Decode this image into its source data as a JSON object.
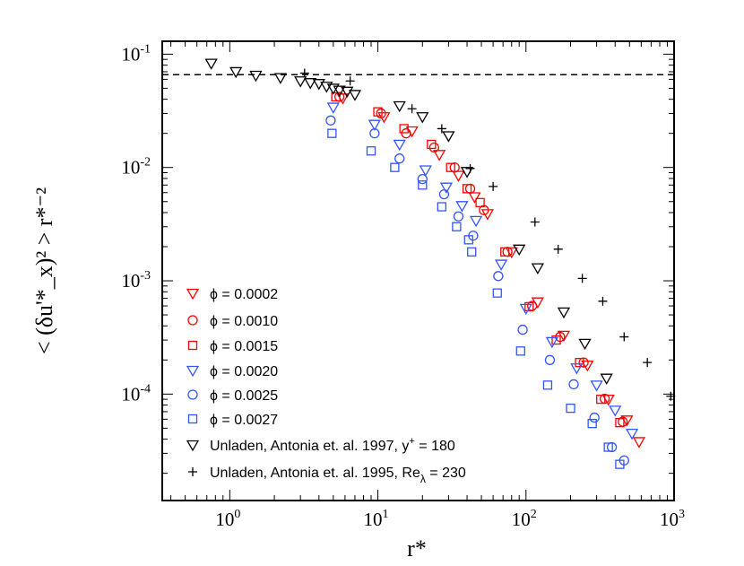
{
  "chart_data": {
    "type": "scatter",
    "xscale": "log",
    "yscale": "log",
    "xlim": [
      0.35,
      1000
    ],
    "ylim": [
      1.15e-05,
      0.13
    ],
    "xlabel": "r*",
    "ylabel": "< (δu'*_x)² > r*⁻²",
    "x_ticks": [
      {
        "base": "10",
        "exp": "0",
        "value": 1
      },
      {
        "base": "10",
        "exp": "1",
        "value": 10
      },
      {
        "base": "10",
        "exp": "2",
        "value": 100
      },
      {
        "base": "10",
        "exp": "3",
        "value": 1000
      }
    ],
    "y_ticks": [
      {
        "base": "10",
        "exp": "-4",
        "value": 0.0001
      },
      {
        "base": "10",
        "exp": "-3",
        "value": 0.001
      },
      {
        "base": "10",
        "exp": "-2",
        "value": 0.01
      },
      {
        "base": "10",
        "exp": "-1",
        "value": 0.1
      }
    ],
    "reference_line": {
      "style": "dashed",
      "y": 0.066
    },
    "legend_position": "lower-left",
    "series": [
      {
        "name": "ϕ = 0.0002",
        "color": "#ff0000",
        "marker": "triangle-down",
        "x": [
          5.8,
          11,
          17,
          26,
          35,
          45,
          55,
          80,
          120,
          180,
          260,
          360,
          480,
          580
        ],
        "y": [
          0.041,
          0.028,
          0.021,
          0.013,
          0.0085,
          0.0055,
          0.0039,
          0.0018,
          0.00065,
          0.00033,
          0.00018,
          9e-05,
          5.9e-05,
          3.8e-05
        ]
      },
      {
        "name": "ϕ = 0.0010",
        "color": "#ff0000",
        "marker": "circle",
        "x": [
          5.5,
          10.5,
          15.5,
          24,
          33,
          42,
          52,
          75,
          110,
          170,
          245,
          340,
          450
        ],
        "y": [
          0.042,
          0.03,
          0.02,
          0.015,
          0.01,
          0.0065,
          0.0042,
          0.0018,
          0.0006,
          0.00032,
          0.00019,
          9.1e-05,
          5.7e-05
        ]
      },
      {
        "name": "ϕ = 0.0015",
        "color": "#ff0000",
        "marker": "square",
        "x": [
          5.2,
          10,
          15,
          23,
          31,
          40,
          49,
          72,
          105,
          160,
          230,
          320,
          430
        ],
        "y": [
          0.042,
          0.031,
          0.022,
          0.016,
          0.01,
          0.0065,
          0.0049,
          0.0018,
          0.00059,
          0.0003,
          0.00019,
          9e-05,
          5.6e-05
        ]
      },
      {
        "name": "ϕ = 0.0020",
        "color": "#3355ff",
        "marker": "triangle-down",
        "x": [
          5,
          9.5,
          14,
          21,
          29,
          37,
          46,
          68,
          100,
          150,
          220,
          300,
          400,
          520
        ],
        "y": [
          0.034,
          0.024,
          0.016,
          0.0095,
          0.0067,
          0.0046,
          0.0034,
          0.0014,
          0.00057,
          0.00029,
          0.00017,
          0.00012,
          7.2e-05,
          4.5e-05
        ]
      },
      {
        "name": "ϕ = 0.0025",
        "color": "#3355ff",
        "marker": "circle",
        "x": [
          4.8,
          9.5,
          14,
          20,
          28,
          35,
          44,
          65,
          95,
          145,
          210,
          290,
          380,
          460
        ],
        "y": [
          0.026,
          0.02,
          0.012,
          0.0079,
          0.0058,
          0.0037,
          0.0025,
          0.0011,
          0.00037,
          0.0002,
          0.000122,
          6.2e-05,
          3.4e-05,
          2.6e-05
        ]
      },
      {
        "name": "ϕ = 0.0027",
        "color": "#3355ff",
        "marker": "square",
        "x": [
          4.9,
          9,
          13,
          20,
          27,
          34,
          41,
          43,
          64,
          92,
          140,
          200,
          280,
          360,
          430
        ],
        "y": [
          0.02,
          0.014,
          0.01,
          0.007,
          0.0045,
          0.003,
          0.0023,
          0.0018,
          0.00078,
          0.00024,
          0.00012,
          7.5e-05,
          5.5e-05,
          3.4e-05,
          2.4e-05
        ]
      },
      {
        "name": "Unladen, Antonia et. al. 1997, y",
        "sup": "+",
        "tail": " = 180",
        "color": "#000000",
        "marker": "triangle-down",
        "x": [
          0.75,
          1.1,
          1.5,
          2.2,
          3,
          3.5,
          4,
          4.5,
          5,
          5.5,
          6.2,
          7,
          14,
          20,
          30,
          40,
          90,
          120,
          180,
          250,
          350
        ],
        "y": [
          0.083,
          0.07,
          0.065,
          0.062,
          0.058,
          0.056,
          0.055,
          0.052,
          0.05,
          0.048,
          0.047,
          0.044,
          0.035,
          0.028,
          0.019,
          0.0092,
          0.0019,
          0.0013,
          0.00053,
          0.00028,
          0.000138
        ]
      },
      {
        "name": "Unladen, Antonia et. al. 1995,  Re",
        "sub": "λ",
        "tail": " = 230",
        "color": "#000000",
        "marker": "plus",
        "x": [
          3.2,
          6.5,
          17,
          27,
          42,
          60,
          115,
          165,
          240,
          330,
          460,
          660,
          950
        ],
        "y": [
          0.068,
          0.058,
          0.033,
          0.022,
          0.0098,
          0.0068,
          0.0033,
          0.0019,
          0.00105,
          0.00066,
          0.00032,
          0.00019,
          9.57e-05
        ]
      }
    ]
  }
}
